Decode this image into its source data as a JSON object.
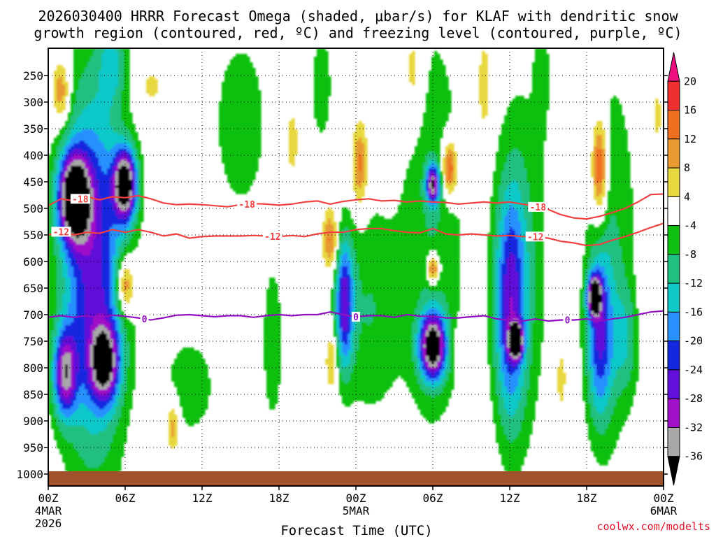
{
  "title": {
    "line1": "2026030400 HRRR Forecast Omega (shaded, μbar/s) for KLAF with dendritic snow",
    "line2": "growth region (contoured, red, ºC) and freezing level (contoured, purple, ºC)"
  },
  "credit": "coolwx.com/modelts",
  "chart_data": {
    "type": "heatmap",
    "title": "2026030400 HRRR Forecast Omega (shaded, μbar/s) for KLAF with dendritic snow growth region (contoured, red, ºC) and freezing level (contoured, purple, ºC)",
    "xlabel": "Forecast Time (UTC)",
    "ylabel": "",
    "xlim": [
      0,
      48
    ],
    "ylim": [
      1000,
      200
    ],
    "x_ticks": [
      {
        "value": 0,
        "label": "00Z",
        "sub1": "4MAR",
        "sub2": "2026"
      },
      {
        "value": 6,
        "label": "06Z",
        "sub1": "",
        "sub2": ""
      },
      {
        "value": 12,
        "label": "12Z",
        "sub1": "",
        "sub2": ""
      },
      {
        "value": 18,
        "label": "18Z",
        "sub1": "",
        "sub2": ""
      },
      {
        "value": 24,
        "label": "00Z",
        "sub1": "5MAR",
        "sub2": ""
      },
      {
        "value": 30,
        "label": "06Z",
        "sub1": "",
        "sub2": ""
      },
      {
        "value": 36,
        "label": "12Z",
        "sub1": "",
        "sub2": ""
      },
      {
        "value": 42,
        "label": "18Z",
        "sub1": "",
        "sub2": ""
      },
      {
        "value": 48,
        "label": "00Z",
        "sub1": "6MAR",
        "sub2": ""
      }
    ],
    "y_ticks": [
      250,
      300,
      350,
      400,
      450,
      500,
      550,
      600,
      650,
      700,
      750,
      800,
      850,
      900,
      950,
      1000
    ],
    "colorbar": {
      "labels": [
        "20",
        "16",
        "12",
        "8",
        "4",
        "-4",
        "-8",
        "-12",
        "-16",
        "-20",
        "-24",
        "-28",
        "-32",
        "-36"
      ],
      "bins": [
        {
          "range": "> 20",
          "color": "#ee1080"
        },
        {
          "range": "16 to 20",
          "color": "#f03030"
        },
        {
          "range": "12 to 16",
          "color": "#f07020"
        },
        {
          "range": "8 to 12",
          "color": "#e89a30"
        },
        {
          "range": "4 to 8",
          "color": "#e8d840"
        },
        {
          "range": "-4 to 4",
          "color": "#ffffff"
        },
        {
          "range": "-8 to -4",
          "color": "#10c010"
        },
        {
          "range": "-12 to -8",
          "color": "#20c080"
        },
        {
          "range": "-16 to -12",
          "color": "#10c8c8"
        },
        {
          "range": "-20 to -16",
          "color": "#2890ff"
        },
        {
          "range": "-24 to -20",
          "color": "#1428e0"
        },
        {
          "range": "-28 to -24",
          "color": "#6010d8"
        },
        {
          "range": "-32 to -28",
          "color": "#a010c8"
        },
        {
          "range": "-36 to -32",
          "color": "#a8a8a8"
        },
        {
          "range": "< -36",
          "color": "#000000"
        }
      ]
    },
    "ground_color": "#a0522d",
    "contours": [
      {
        "name": "dendritic -18C",
        "color": "#f04040",
        "label": "-18",
        "points": [
          [
            0,
            495
          ],
          [
            1,
            482
          ],
          [
            2,
            486
          ],
          [
            3,
            478
          ],
          [
            4,
            484
          ],
          [
            5,
            478
          ],
          [
            6,
            480
          ],
          [
            7,
            476
          ],
          [
            8,
            482
          ],
          [
            9,
            490
          ],
          [
            10,
            493
          ],
          [
            11,
            492
          ],
          [
            12,
            493
          ],
          [
            13,
            495
          ],
          [
            14,
            497
          ],
          [
            15,
            493
          ],
          [
            16,
            491
          ],
          [
            17,
            492
          ],
          [
            18,
            494
          ],
          [
            19,
            492
          ],
          [
            20,
            488
          ],
          [
            21,
            486
          ],
          [
            22,
            492
          ],
          [
            23,
            487
          ],
          [
            24,
            484
          ],
          [
            25,
            482
          ],
          [
            26,
            486
          ],
          [
            27,
            485
          ],
          [
            28,
            488
          ],
          [
            29,
            486
          ],
          [
            30,
            488
          ],
          [
            31,
            489
          ],
          [
            32,
            492
          ],
          [
            33,
            490
          ],
          [
            34,
            488
          ],
          [
            35,
            490
          ],
          [
            36,
            488
          ],
          [
            37,
            492
          ],
          [
            38,
            496
          ],
          [
            39,
            502
          ],
          [
            40,
            512
          ],
          [
            41,
            518
          ],
          [
            42,
            520
          ],
          [
            43,
            515
          ],
          [
            44,
            508
          ],
          [
            45,
            500
          ],
          [
            46,
            488
          ],
          [
            47,
            474
          ],
          [
            48,
            473
          ]
        ],
        "label_at": [
          2.5,
          15.5,
          38.2
        ]
      },
      {
        "name": "dendritic -12C",
        "color": "#f04040",
        "label": "-12",
        "points": [
          [
            0,
            550
          ],
          [
            1,
            544
          ],
          [
            2,
            550
          ],
          [
            3,
            545
          ],
          [
            4,
            547
          ],
          [
            5,
            540
          ],
          [
            6,
            545
          ],
          [
            7,
            540
          ],
          [
            8,
            545
          ],
          [
            9,
            552
          ],
          [
            10,
            548
          ],
          [
            11,
            556
          ],
          [
            12,
            553
          ],
          [
            13,
            552
          ],
          [
            14,
            552
          ],
          [
            15,
            552
          ],
          [
            16,
            551
          ],
          [
            17,
            552
          ],
          [
            18,
            553
          ],
          [
            19,
            551
          ],
          [
            20,
            553
          ],
          [
            21,
            548
          ],
          [
            22,
            545
          ],
          [
            23,
            545
          ],
          [
            24,
            540
          ],
          [
            25,
            538
          ],
          [
            26,
            538
          ],
          [
            27,
            542
          ],
          [
            28,
            545
          ],
          [
            29,
            546
          ],
          [
            30,
            538
          ],
          [
            31,
            548
          ],
          [
            32,
            550
          ],
          [
            33,
            548
          ],
          [
            34,
            550
          ],
          [
            35,
            552
          ],
          [
            36,
            551
          ],
          [
            37,
            553
          ],
          [
            38,
            553
          ],
          [
            39,
            556
          ],
          [
            40,
            562
          ],
          [
            41,
            565
          ],
          [
            42,
            570
          ],
          [
            43,
            568
          ],
          [
            44,
            560
          ],
          [
            45,
            553
          ],
          [
            46,
            545
          ],
          [
            47,
            536
          ],
          [
            48,
            528
          ]
        ],
        "label_at": [
          1,
          17.5,
          38
        ]
      },
      {
        "name": "freezing level 0C",
        "color": "#9010c0",
        "label": "0",
        "points": [
          [
            0,
            705
          ],
          [
            1,
            702
          ],
          [
            2,
            705
          ],
          [
            3,
            702
          ],
          [
            4,
            706
          ],
          [
            5,
            701
          ],
          [
            6,
            703
          ],
          [
            7,
            706
          ],
          [
            8,
            710
          ],
          [
            9,
            706
          ],
          [
            10,
            701
          ],
          [
            11,
            700
          ],
          [
            12,
            702
          ],
          [
            13,
            704
          ],
          [
            14,
            702
          ],
          [
            15,
            702
          ],
          [
            16,
            705
          ],
          [
            17,
            702
          ],
          [
            18,
            700
          ],
          [
            19,
            702
          ],
          [
            20,
            700
          ],
          [
            21,
            700
          ],
          [
            22,
            695
          ],
          [
            23,
            700
          ],
          [
            24,
            704
          ],
          [
            25,
            702
          ],
          [
            26,
            702
          ],
          [
            27,
            705
          ],
          [
            28,
            700
          ],
          [
            29,
            703
          ],
          [
            30,
            703
          ],
          [
            31,
            706
          ],
          [
            32,
            706
          ],
          [
            33,
            704
          ],
          [
            34,
            702
          ],
          [
            35,
            708
          ],
          [
            36,
            710
          ],
          [
            37,
            712
          ],
          [
            38,
            708
          ],
          [
            39,
            712
          ],
          [
            40,
            710
          ],
          [
            41,
            710
          ],
          [
            42,
            708
          ],
          [
            43,
            712
          ],
          [
            44,
            708
          ],
          [
            45,
            705
          ],
          [
            46,
            700
          ],
          [
            47,
            695
          ],
          [
            48,
            693
          ]
        ],
        "label_at": [
          7.5,
          24,
          40.5
        ]
      }
    ],
    "omega_features": [
      {
        "time": 2.0,
        "p1": 400,
        "p2": 560,
        "w": 1.2,
        "peak": -40
      },
      {
        "time": 6.0,
        "p1": 390,
        "p2": 520,
        "w": 0.9,
        "peak": -40
      },
      {
        "time": 3.5,
        "p1": 260,
        "p2": 960,
        "w": 2.5,
        "peak": -26
      },
      {
        "time": 1.3,
        "p1": 730,
        "p2": 890,
        "w": 0.9,
        "peak": -28
      },
      {
        "time": 4.4,
        "p1": 720,
        "p2": 860,
        "w": 1.1,
        "peak": -30
      },
      {
        "time": 1.0,
        "p1": 220,
        "p2": 340,
        "w": 0.7,
        "peak": 14
      },
      {
        "time": 6.0,
        "p1": 590,
        "p2": 700,
        "w": 0.7,
        "peak": 18
      },
      {
        "time": 9.7,
        "p1": 860,
        "p2": 960,
        "w": 0.5,
        "peak": 12
      },
      {
        "time": 8.0,
        "p1": 240,
        "p2": 300,
        "w": 0.9,
        "peak": 6
      },
      {
        "time": 5.0,
        "p1": 150,
        "p2": 300,
        "w": 1.0,
        "peak": -10
      },
      {
        "time": 15.0,
        "p1": 180,
        "p2": 500,
        "w": 2.0,
        "peak": -8
      },
      {
        "time": 11.0,
        "p1": 720,
        "p2": 950,
        "w": 2.5,
        "peak": -6
      },
      {
        "time": 17.5,
        "p1": 560,
        "p2": 950,
        "w": 1.0,
        "peak": -6
      },
      {
        "time": 19.0,
        "p1": 300,
        "p2": 450,
        "w": 0.6,
        "peak": 6
      },
      {
        "time": 21.3,
        "p1": 140,
        "p2": 400,
        "w": 1.0,
        "peak": -6
      },
      {
        "time": 22.0,
        "p1": 500,
        "p2": 620,
        "w": 0.6,
        "peak": 14
      },
      {
        "time": 23.1,
        "p1": 560,
        "p2": 800,
        "w": 0.7,
        "peak": -24
      },
      {
        "time": 24.3,
        "p1": 340,
        "p2": 500,
        "w": 0.6,
        "peak": 14
      },
      {
        "time": 22.1,
        "p1": 720,
        "p2": 850,
        "w": 0.5,
        "peak": 10
      },
      {
        "time": 25.0,
        "p1": 480,
        "p2": 900,
        "w": 2.5,
        "peak": -8
      },
      {
        "time": 28.5,
        "p1": 140,
        "p2": 350,
        "w": 0.8,
        "peak": 8
      },
      {
        "time": 30.0,
        "p1": 700,
        "p2": 820,
        "w": 1.0,
        "peak": -40
      },
      {
        "time": 30.0,
        "p1": 420,
        "p2": 490,
        "w": 0.5,
        "peak": -30
      },
      {
        "time": 31.3,
        "p1": 370,
        "p2": 480,
        "w": 0.6,
        "peak": 20
      },
      {
        "time": 30.0,
        "p1": 585,
        "p2": 640,
        "w": 0.5,
        "peak": 20
      },
      {
        "time": 30.0,
        "p1": 130,
        "p2": 960,
        "w": 2.5,
        "peak": -8
      },
      {
        "time": 32.0,
        "p1": 730,
        "p2": 790,
        "w": 0.4,
        "peak": 8
      },
      {
        "time": 34.0,
        "p1": 180,
        "p2": 360,
        "w": 0.5,
        "peak": 8
      },
      {
        "time": 36.5,
        "p1": 720,
        "p2": 780,
        "w": 0.5,
        "peak": -40
      },
      {
        "time": 36.0,
        "p1": 470,
        "p2": 900,
        "w": 1.2,
        "peak": -22
      },
      {
        "time": 37.0,
        "p1": 250,
        "p2": 950,
        "w": 2.0,
        "peak": -8
      },
      {
        "time": 38.5,
        "p1": 130,
        "p2": 360,
        "w": 0.6,
        "peak": -6
      },
      {
        "time": 40.0,
        "p1": 740,
        "p2": 900,
        "w": 0.5,
        "peak": 6
      },
      {
        "time": 43.0,
        "p1": 330,
        "p2": 520,
        "w": 0.6,
        "peak": 20
      },
      {
        "time": 42.6,
        "p1": 630,
        "p2": 700,
        "w": 0.5,
        "peak": -40
      },
      {
        "time": 43.0,
        "p1": 590,
        "p2": 900,
        "w": 1.0,
        "peak": -20
      },
      {
        "time": 44.0,
        "p1": 220,
        "p2": 960,
        "w": 2.0,
        "peak": -8
      },
      {
        "time": 46.5,
        "p1": 480,
        "p2": 720,
        "w": 0.6,
        "peak": 5
      },
      {
        "time": 47.5,
        "p1": 250,
        "p2": 400,
        "w": 0.5,
        "peak": 5
      },
      {
        "time": 45.0,
        "p1": 650,
        "p2": 850,
        "w": 1.0,
        "peak": -8
      }
    ]
  }
}
